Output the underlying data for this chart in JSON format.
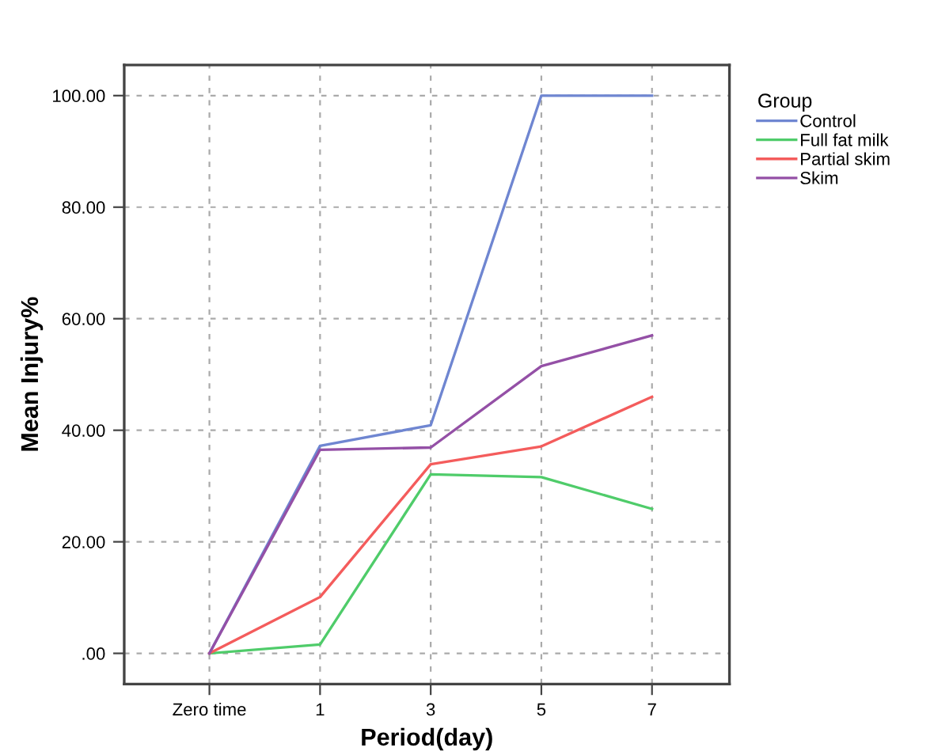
{
  "chart_data": {
    "type": "line",
    "xlabel": "Period(day)",
    "ylabel": "Mean Injury%",
    "legend_title": "Group",
    "legend": "right",
    "categories": [
      "Zero time",
      "1",
      "3",
      "5",
      "7"
    ],
    "series": [
      {
        "name": "Control",
        "color": "#6f86d1",
        "values": [
          0,
          37.2,
          40.9,
          100,
          100
        ]
      },
      {
        "name": "Full fat milk",
        "color": "#4fcc6a",
        "values": [
          0,
          1.6,
          32.1,
          31.6,
          25.9
        ]
      },
      {
        "name": "Partial skim",
        "color": "#f45c5c",
        "values": [
          0,
          10.1,
          33.9,
          37.1,
          46.0
        ]
      },
      {
        "name": "Skim",
        "color": "#9450a6",
        "values": [
          0,
          36.5,
          36.9,
          51.5,
          57.0
        ]
      }
    ],
    "ylim": [
      -5.5,
      105.5
    ],
    "yticks": [
      {
        "value": 0,
        "label": ".00"
      },
      {
        "value": 20,
        "label": "20.00"
      },
      {
        "value": 40,
        "label": "40.00"
      },
      {
        "value": 60,
        "label": "60.00"
      },
      {
        "value": 80,
        "label": "80.00"
      },
      {
        "value": 100,
        "label": "100.00"
      }
    ],
    "grid": true,
    "marker": "none",
    "line_style": "solid"
  }
}
